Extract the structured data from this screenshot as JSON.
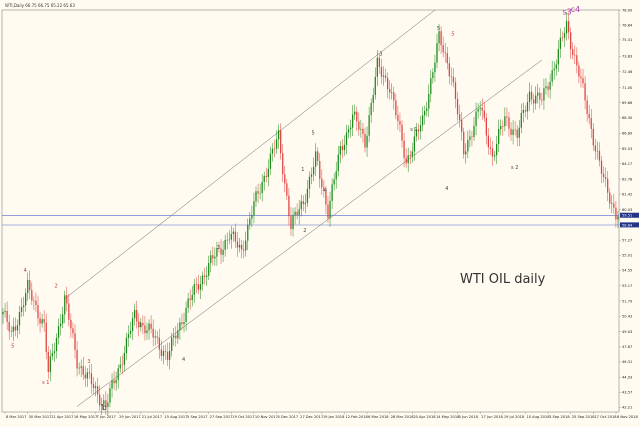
{
  "chart_data": {
    "type": "candlestick",
    "title": "WTI OIL daily",
    "symbol_header": "WTI,Daily  66.75 66.75 65.22 65.63",
    "ylim": [
      41.8,
      78.0
    ],
    "y_ticks": [
      "78.00",
      "76.64",
      "75.31",
      "73.83",
      "72.46",
      "71.00",
      "69.66",
      "68.30",
      "66.89",
      "65.53",
      "64.17",
      "62.78",
      "61.42",
      "60.03",
      "58.69",
      "57.27",
      "55.91",
      "54.55",
      "53.17",
      "51.79",
      "50.43",
      "49.03",
      "47.67",
      "46.31",
      "44.93",
      "43.57",
      "42.21"
    ],
    "x_labels": [
      "8 Mar 2017",
      "30 Mar 2017",
      "21 Apr 2017",
      "16 May 2017",
      "7 Jun 2017",
      "29 Jun 2017",
      "21 Jul 2017",
      "15 Aug 2017",
      "5 Sep 2017",
      "27 Sep 2017",
      "19 Oct 2017",
      "10 Nov 2017",
      "4 Dec 2017",
      "27 Dec 2017",
      "19 Jan 2018",
      "12 Feb 2018",
      "6 Mar 2018",
      "28 Mar 2018",
      "20 Apr 2018",
      "14 May 2018",
      "5 Jun 2018",
      "27 Jun 2018",
      "19 Jul 2018",
      "10 Aug 2018",
      "3 Sep 2018",
      "25 Sep 2018",
      "17 Oct 2018",
      "8 Nov 2018"
    ],
    "price_labels": [
      "59.51",
      "58.64"
    ],
    "anchors": [
      {
        "i": 0,
        "p": 50.8
      },
      {
        "i": 4,
        "p": 48.6
      },
      {
        "i": 12,
        "p": 52.9
      },
      {
        "i": 20,
        "p": 49.6
      },
      {
        "i": 22,
        "p": 45.2
      },
      {
        "i": 30,
        "p": 52.0
      },
      {
        "i": 36,
        "p": 46.4
      },
      {
        "i": 42,
        "p": 44.6
      },
      {
        "i": 50,
        "p": 42.3
      },
      {
        "i": 56,
        "p": 45.6
      },
      {
        "i": 64,
        "p": 50.4
      },
      {
        "i": 72,
        "p": 48.9
      },
      {
        "i": 80,
        "p": 46.8
      },
      {
        "i": 90,
        "p": 51.6
      },
      {
        "i": 100,
        "p": 55.0
      },
      {
        "i": 110,
        "p": 57.7
      },
      {
        "i": 116,
        "p": 56.4
      },
      {
        "i": 122,
        "p": 60.4
      },
      {
        "i": 128,
        "p": 63.6
      },
      {
        "i": 134,
        "p": 66.6
      },
      {
        "i": 140,
        "p": 58.5
      },
      {
        "i": 146,
        "p": 60.8
      },
      {
        "i": 152,
        "p": 64.6
      },
      {
        "i": 158,
        "p": 60.0
      },
      {
        "i": 164,
        "p": 65.3
      },
      {
        "i": 170,
        "p": 68.5
      },
      {
        "i": 176,
        "p": 66.2
      },
      {
        "i": 182,
        "p": 72.9
      },
      {
        "i": 188,
        "p": 71.2
      },
      {
        "i": 196,
        "p": 64.4
      },
      {
        "i": 204,
        "p": 68.0
      },
      {
        "i": 212,
        "p": 75.4
      },
      {
        "i": 218,
        "p": 72.3
      },
      {
        "i": 224,
        "p": 65.2
      },
      {
        "i": 232,
        "p": 69.3
      },
      {
        "i": 238,
        "p": 64.8
      },
      {
        "i": 244,
        "p": 68.3
      },
      {
        "i": 250,
        "p": 66.7
      },
      {
        "i": 256,
        "p": 70.5
      },
      {
        "i": 262,
        "p": 69.8
      },
      {
        "i": 268,
        "p": 73.0
      },
      {
        "i": 274,
        "p": 76.6
      },
      {
        "i": 280,
        "p": 72.3
      },
      {
        "i": 286,
        "p": 67.3
      },
      {
        "i": 292,
        "p": 62.6
      },
      {
        "i": 298,
        "p": 59.7
      }
    ],
    "horizontal_lines": [
      59.51,
      58.64
    ],
    "channel_upper": [
      {
        "i": 30,
        "p": 52.0
      },
      {
        "i": 210,
        "p": 78.0
      }
    ],
    "channel_lower": [
      {
        "i": 36,
        "p": 42.3
      },
      {
        "i": 262,
        "p": 73.5
      }
    ],
    "wave_labels": [
      {
        "text": "4",
        "i": 10,
        "p": 54.4,
        "color": "#d03030"
      },
      {
        "text": "5",
        "i": 4,
        "p": 47.6,
        "color": "#d03030"
      },
      {
        "text": "2",
        "i": 25,
        "p": 53.0,
        "color": "#d03030"
      },
      {
        "text": "s 1",
        "i": 19,
        "p": 44.3,
        "color": "#d03030"
      },
      {
        "text": "3",
        "i": 41,
        "p": 46.2,
        "color": "#d03030"
      },
      {
        "text": "b",
        "i": 48,
        "p": 42.0,
        "color": "#333333"
      },
      {
        "text": "1",
        "i": 66,
        "p": 49.5,
        "color": "#444444"
      },
      {
        "text": "3",
        "i": 104,
        "p": 56.5,
        "color": "#444444"
      },
      {
        "text": "4",
        "i": 87,
        "p": 46.4,
        "color": "#444444"
      },
      {
        "text": "5",
        "i": 150,
        "p": 66.8,
        "color": "#444444"
      },
      {
        "text": "4",
        "i": 156,
        "p": 61.6,
        "color": "#444444"
      },
      {
        "text": "1",
        "i": 145,
        "p": 63.5,
        "color": "#444444"
      },
      {
        "text": "2",
        "i": 146,
        "p": 58.0,
        "color": "#444444"
      },
      {
        "text": "4",
        "i": 215,
        "p": 61.8,
        "color": "#444444"
      },
      {
        "text": "5",
        "i": 211,
        "p": 76.2,
        "color": "#444444"
      },
      {
        "text": "5",
        "i": 218,
        "p": 75.7,
        "color": "#d03030"
      },
      {
        "text": "3",
        "i": 183,
        "p": 73.9,
        "color": "#444444"
      },
      {
        "text": "s 1",
        "i": 198,
        "p": 67.1,
        "color": "#444444"
      },
      {
        "text": "s 2",
        "i": 247,
        "p": 63.7,
        "color": "#444444"
      },
      {
        "text": "s3",
        "i": 272,
        "p": 77.6,
        "color": "#b040b0"
      },
      {
        "text": "c4",
        "i": 276,
        "p": 77.8,
        "color": "#b040b0"
      }
    ]
  }
}
